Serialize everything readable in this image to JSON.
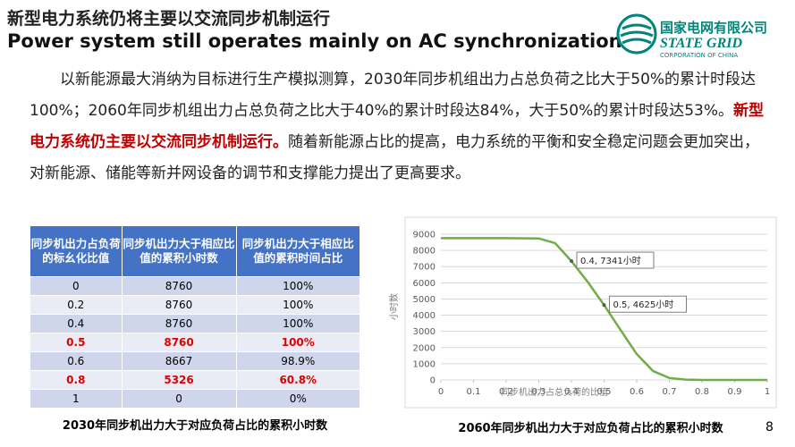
{
  "header": {
    "title_cn": "新型电力系统仍将主要以交流同步机制运行",
    "title_en": "Power system still operates mainly on AC synchronization"
  },
  "logo": {
    "name_cn": "国家电网有限公司",
    "name_en": "STATE GRID",
    "subtitle": "CORPORATION OF CHINA"
  },
  "paragraph": [
    {
      "text": "以新能源最大消纳为目标进行生产模拟测算，2030年同步机组出力占总负荷之比大于50%的累计时段达100%；2060年同步机组出力占总负荷之比大于40%的累计时段达84%，大于50%的累计时段达53%。",
      "emphasis": false
    },
    {
      "text": "新型电力系统仍主要以交流同步机制运行。",
      "emphasis": true
    },
    {
      "text": "随着新能源占比的提高，电力系统的平衡和安全稳定问题会更加突出，对新能源、储能等新并网设备的调节和支撑能力提出了更高要求。",
      "emphasis": false
    }
  ],
  "table": {
    "header": [
      "同步机出力占负荷的标幺化比值",
      "同步机出力大于相应比值的累积小时数",
      "同步机出力大于相应比值的累积时间占比"
    ],
    "rows": [
      {
        "cells": [
          "0",
          "8760",
          "100%"
        ],
        "highlight": false
      },
      {
        "cells": [
          "0.2",
          "8760",
          "100%"
        ],
        "highlight": false
      },
      {
        "cells": [
          "0.4",
          "8760",
          "100%"
        ],
        "highlight": false
      },
      {
        "cells": [
          "0.5",
          "8760",
          "100%"
        ],
        "highlight": true
      },
      {
        "cells": [
          "0.6",
          "8667",
          "98.9%"
        ],
        "highlight": false
      },
      {
        "cells": [
          "0.8",
          "5326",
          "60.8%"
        ],
        "highlight": true
      },
      {
        "cells": [
          "1",
          "0",
          "0%"
        ],
        "highlight": false
      }
    ],
    "caption": "2030年同步机出力大于对应负荷占比的累积小时数"
  },
  "chart_data": {
    "type": "line",
    "x_label": "同步机出力占总负荷的比值",
    "y_label": "小时数",
    "caption": "2060年同步机出力大于对应负荷占比的累积小时数",
    "x": [
      0,
      0.1,
      0.2,
      0.3,
      0.35,
      0.4,
      0.45,
      0.5,
      0.55,
      0.6,
      0.65,
      0.7,
      0.75,
      0.8,
      0.9,
      1
    ],
    "series": [
      {
        "name": "累积小时数",
        "color": "#70ad47",
        "values": [
          8760,
          8760,
          8760,
          8740,
          8450,
          7341,
          6050,
          4625,
          3100,
          1600,
          550,
          120,
          20,
          0,
          0,
          0
        ]
      }
    ],
    "xlim": [
      0,
      1
    ],
    "xticks": [
      0,
      0.1,
      0.2,
      0.3,
      0.4,
      0.5,
      0.6,
      0.7,
      0.8,
      0.9,
      1
    ],
    "ylim": [
      0,
      9000
    ],
    "yticks": [
      0,
      1000,
      2000,
      3000,
      4000,
      5000,
      6000,
      7000,
      8000,
      9000
    ],
    "grid": true,
    "annotations": [
      {
        "text": "0.4, 7341小时",
        "x": 0.4,
        "y": 7341
      },
      {
        "text": "0.5, 4625小时",
        "x": 0.5,
        "y": 4625
      }
    ]
  },
  "page_number": "8"
}
